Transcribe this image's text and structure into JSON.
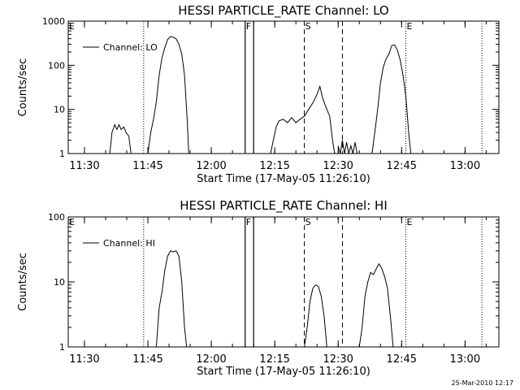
{
  "timestamp": "25-Mar-2010 12:17",
  "chart_data": [
    {
      "type": "line",
      "title": "HESSI PARTICLE_RATE Channel: LO",
      "xlabel": "Start Time (17-May-05 11:26:10)",
      "ylabel": "Counts/sec",
      "y_scale": "log",
      "ylim": [
        1,
        1000
      ],
      "y_ticks": [
        1,
        10,
        100,
        1000
      ],
      "y_tick_labels": [
        "1",
        "10",
        "100",
        "1000"
      ],
      "x_tick_labels": [
        "11:30",
        "11:45",
        "12:00",
        "12:15",
        "12:30",
        "12:45",
        "13:00"
      ],
      "x_tick_values": [
        "11:30",
        "11:45",
        "12:00",
        "12:15",
        "12:30",
        "12:45",
        "13:00"
      ],
      "xlim": [
        "11:26:10",
        "13:08:00"
      ],
      "legend": {
        "label": "Channel: LO",
        "position": "top-left"
      },
      "markers": [
        {
          "label": "E",
          "time": "11:26:10",
          "style": "dotted"
        },
        {
          "label": "",
          "time": "11:44:00",
          "style": "dotted"
        },
        {
          "label": "F",
          "time": "12:08:00",
          "style": "solid"
        },
        {
          "label": "",
          "time": "12:10:00",
          "style": "solid"
        },
        {
          "label": "S",
          "time": "12:22:00",
          "style": "dashed"
        },
        {
          "label": "",
          "time": "12:31:00",
          "style": "dashed"
        },
        {
          "label": "E",
          "time": "12:46:00",
          "style": "dotted"
        },
        {
          "label": "",
          "time": "13:04:00",
          "style": "dotted"
        }
      ],
      "series": [
        {
          "name": "Channel: LO",
          "segments": [
            [
              [
                "11:36:00",
                1
              ],
              [
                "11:36:30",
                3
              ],
              [
                "11:37:10",
                4.5
              ],
              [
                "11:37:40",
                3.5
              ],
              [
                "11:38:10",
                4.5
              ],
              [
                "11:38:40",
                3.5
              ],
              [
                "11:39:20",
                4
              ],
              [
                "11:39:50",
                3
              ],
              [
                "11:40:30",
                2.5
              ],
              [
                "11:41:00",
                1
              ]
            ],
            [
              [
                "11:45:00",
                1
              ],
              [
                "11:45:40",
                3
              ],
              [
                "11:46:20",
                6
              ],
              [
                "11:47:00",
                15
              ],
              [
                "11:47:40",
                60
              ],
              [
                "11:48:20",
                150
              ],
              [
                "11:49:00",
                250
              ],
              [
                "11:49:40",
                380
              ],
              [
                "11:50:20",
                450
              ],
              [
                "11:51:00",
                430
              ],
              [
                "11:51:40",
                400
              ],
              [
                "11:52:20",
                300
              ],
              [
                "11:53:00",
                180
              ],
              [
                "11:53:40",
                60
              ],
              [
                "11:54:20",
                5
              ],
              [
                "11:54:40",
                1
              ]
            ],
            [
              [
                "12:14:00",
                1
              ],
              [
                "12:14:40",
                2
              ],
              [
                "12:15:20",
                4
              ],
              [
                "12:16:00",
                5.5
              ],
              [
                "12:17:00",
                6
              ],
              [
                "12:18:00",
                5
              ],
              [
                "12:19:00",
                6.5
              ],
              [
                "12:20:00",
                5
              ],
              [
                "12:21:00",
                6
              ],
              [
                "12:22:00",
                7
              ],
              [
                "12:23:00",
                10
              ],
              [
                "12:24:00",
                14
              ],
              [
                "12:25:00",
                22
              ],
              [
                "12:25:40",
                33
              ],
              [
                "12:26:20",
                18
              ],
              [
                "12:27:00",
                12
              ],
              [
                "12:28:00",
                7
              ],
              [
                "12:28:40",
                2
              ],
              [
                "12:29:10",
                1
              ]
            ],
            [
              [
                "12:30:00",
                1.5
              ],
              [
                "12:30:30",
                1
              ],
              [
                "12:31:00",
                2
              ],
              [
                "12:31:30",
                1
              ],
              [
                "12:32:00",
                1.8
              ],
              [
                "12:32:30",
                1
              ],
              [
                "12:33:00",
                1.5
              ],
              [
                "12:33:30",
                1
              ],
              [
                "12:34:00",
                1.8
              ],
              [
                "12:34:30",
                1
              ]
            ],
            [
              [
                "12:38:00",
                1
              ],
              [
                "12:38:40",
                3
              ],
              [
                "12:39:20",
                10
              ],
              [
                "12:40:00",
                40
              ],
              [
                "12:40:40",
                90
              ],
              [
                "12:41:20",
                140
              ],
              [
                "12:42:00",
                180
              ],
              [
                "12:42:40",
                280
              ],
              [
                "12:43:20",
                290
              ],
              [
                "12:44:00",
                220
              ],
              [
                "12:44:40",
                130
              ],
              [
                "12:45:20",
                60
              ],
              [
                "12:46:00",
                20
              ],
              [
                "12:46:40",
                3
              ],
              [
                "12:47:10",
                1
              ]
            ]
          ]
        }
      ]
    },
    {
      "type": "line",
      "title": "HESSI PARTICLE_RATE Channel: HI",
      "xlabel": "Start Time (17-May-05 11:26:10)",
      "ylabel": "Counts/sec",
      "y_scale": "log",
      "ylim": [
        1,
        100
      ],
      "y_ticks": [
        1,
        10,
        100
      ],
      "y_tick_labels": [
        "1",
        "10",
        "100"
      ],
      "x_tick_labels": [
        "11:30",
        "11:45",
        "12:00",
        "12:15",
        "12:30",
        "12:45",
        "13:00"
      ],
      "x_tick_values": [
        "11:30",
        "11:45",
        "12:00",
        "12:15",
        "12:30",
        "12:45",
        "13:00"
      ],
      "xlim": [
        "11:26:10",
        "13:08:00"
      ],
      "legend": {
        "label": "Channel: HI",
        "position": "top-left"
      },
      "markers": [
        {
          "label": "E",
          "time": "11:26:10",
          "style": "dotted"
        },
        {
          "label": "",
          "time": "11:44:00",
          "style": "dotted"
        },
        {
          "label": "F",
          "time": "12:08:00",
          "style": "solid"
        },
        {
          "label": "",
          "time": "12:10:00",
          "style": "solid"
        },
        {
          "label": "S",
          "time": "12:22:00",
          "style": "dashed"
        },
        {
          "label": "",
          "time": "12:31:00",
          "style": "dashed"
        },
        {
          "label": "E",
          "time": "12:46:00",
          "style": "dotted"
        },
        {
          "label": "",
          "time": "13:04:00",
          "style": "dotted"
        }
      ],
      "series": [
        {
          "name": "Channel: HI",
          "segments": [
            [
              [
                "11:47:00",
                1
              ],
              [
                "11:47:40",
                4
              ],
              [
                "11:48:20",
                7
              ],
              [
                "11:49:00",
                15
              ],
              [
                "11:49:40",
                25
              ],
              [
                "11:50:20",
                30
              ],
              [
                "11:51:00",
                29
              ],
              [
                "11:51:40",
                30
              ],
              [
                "11:52:20",
                25
              ],
              [
                "11:53:00",
                10
              ],
              [
                "11:53:40",
                2
              ],
              [
                "11:54:10",
                1
              ]
            ],
            [
              [
                "12:22:00",
                1
              ],
              [
                "12:22:40",
                2
              ],
              [
                "12:23:20",
                5
              ],
              [
                "12:24:00",
                8
              ],
              [
                "12:24:40",
                9
              ],
              [
                "12:25:20",
                8.5
              ],
              [
                "12:26:00",
                6
              ],
              [
                "12:26:40",
                3
              ],
              [
                "12:27:20",
                1
              ]
            ],
            [
              [
                "12:35:00",
                1
              ],
              [
                "12:35:40",
                2
              ],
              [
                "12:36:20",
                6
              ],
              [
                "12:37:00",
                10
              ],
              [
                "12:37:40",
                14
              ],
              [
                "12:38:20",
                13
              ],
              [
                "12:39:00",
                16
              ],
              [
                "12:39:40",
                19
              ],
              [
                "12:40:20",
                16
              ],
              [
                "12:41:00",
                12
              ],
              [
                "12:41:40",
                8
              ],
              [
                "12:42:20",
                3
              ],
              [
                "12:43:00",
                1
              ]
            ]
          ]
        }
      ]
    }
  ]
}
